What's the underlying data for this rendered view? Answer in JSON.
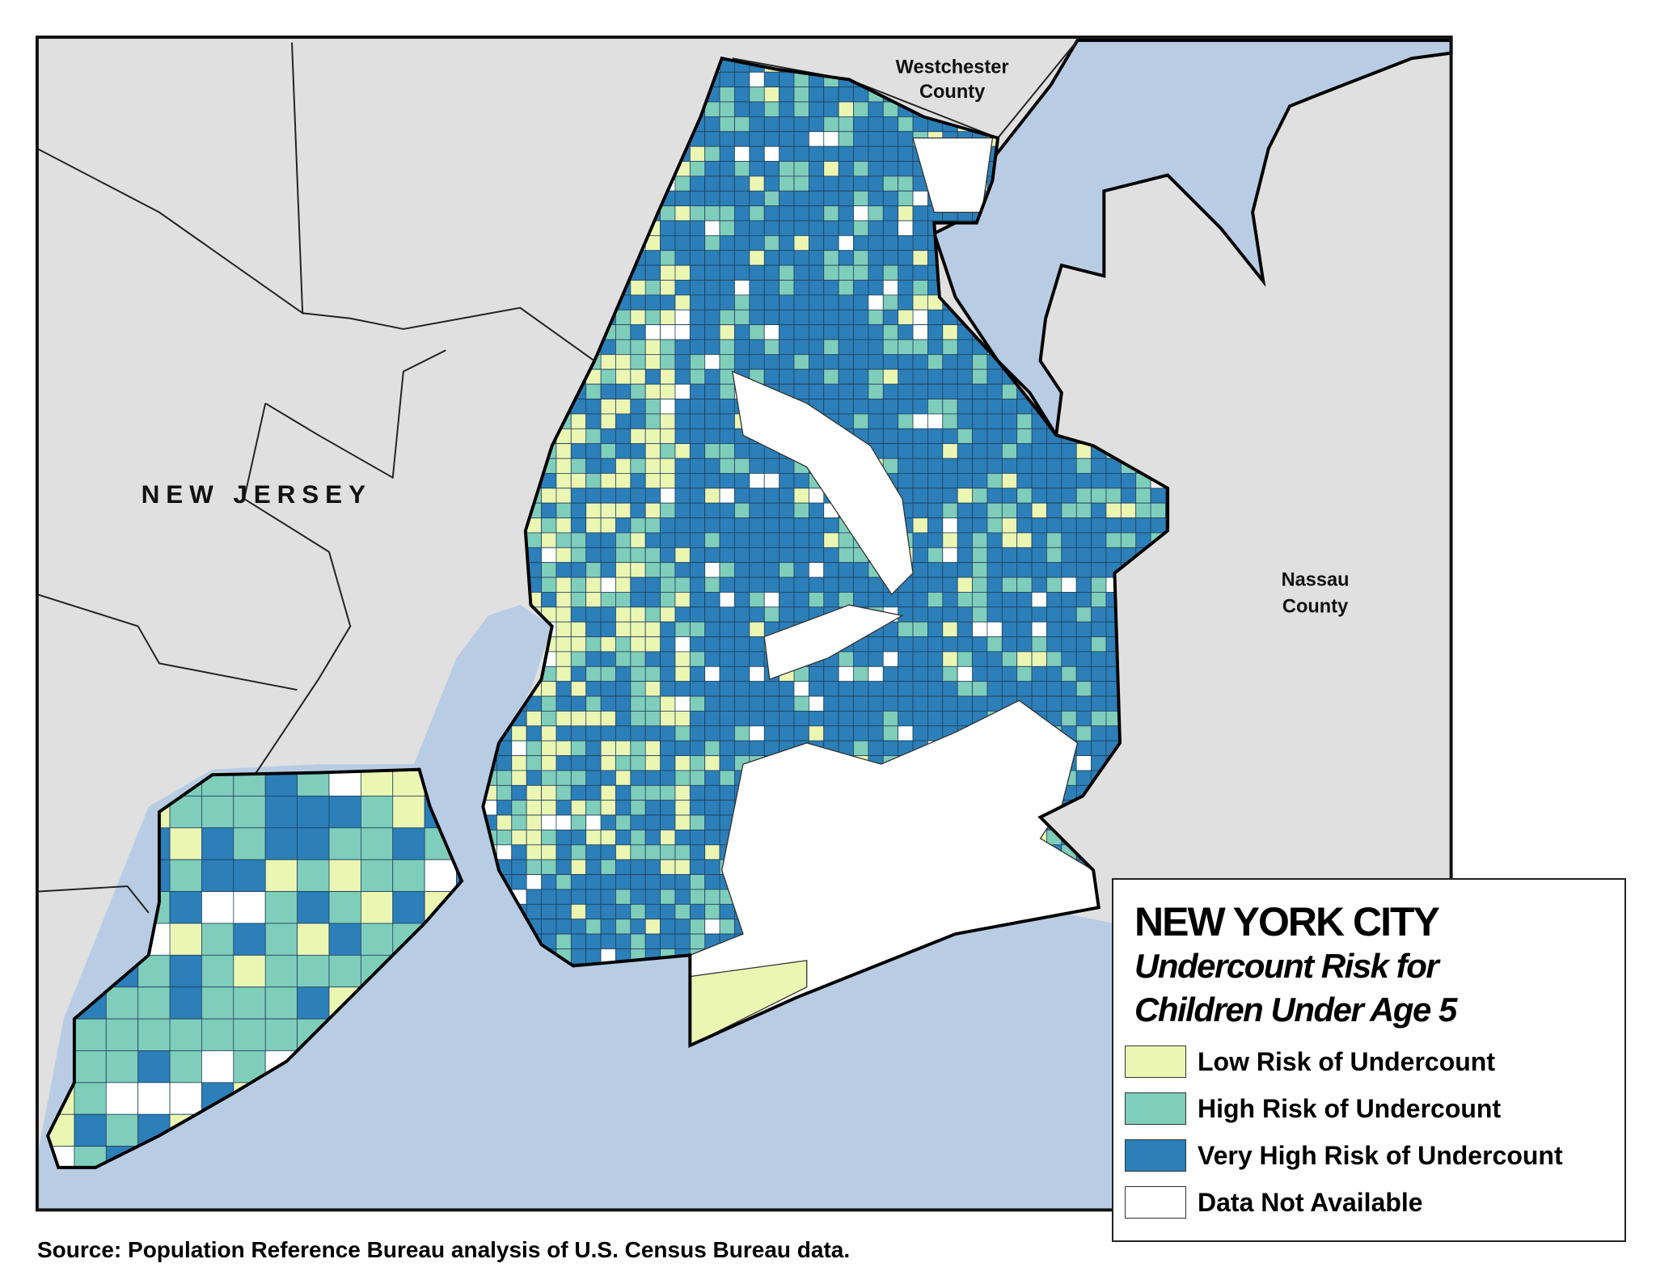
{
  "map": {
    "labels": {
      "new_jersey": "NEW JERSEY",
      "westchester_line1": "Westchester",
      "westchester_line2": "County",
      "nassau_line1": "Nassau",
      "nassau_line2": "County"
    },
    "colors": {
      "water": "#b8cce4",
      "land": "#e0e0e0",
      "low": "#ecf6b3",
      "high": "#7fcdbb",
      "very_high": "#2c7fb8",
      "na": "#ffffff"
    }
  },
  "legend": {
    "title": "NEW YORK CITY",
    "subtitle_line1": "Undercount Risk for",
    "subtitle_line2": "Children Under Age 5",
    "items": [
      {
        "label": "Low Risk of Undercount",
        "color": "#ecf6b3"
      },
      {
        "label": "High Risk of Undercount",
        "color": "#7fcdbb"
      },
      {
        "label": "Very High Risk of Undercount",
        "color": "#2c7fb8"
      },
      {
        "label": "Data Not Available",
        "color": "#ffffff"
      }
    ]
  },
  "source": "Source: Population Reference Bureau analysis of U.S. Census Bureau data."
}
